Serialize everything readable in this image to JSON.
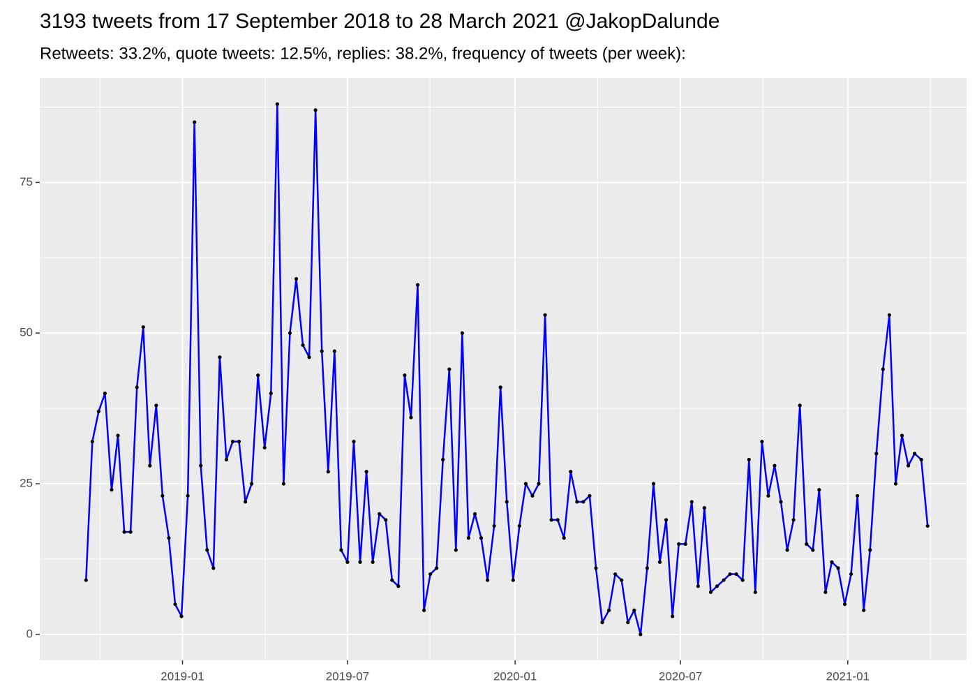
{
  "chart_data": {
    "type": "line",
    "title": "3193 tweets from 17 September 2018 to 28 March 2021 @JakopDalunde",
    "subtitle": "Retweets: 33.2%, quote tweets: 12.5%, replies: 38.2%, frequency of tweets (per week):",
    "x": [
      2018.71,
      2018.729,
      2018.748,
      2018.767,
      2018.787,
      2018.806,
      2018.825,
      2018.844,
      2018.863,
      2018.882,
      2018.902,
      2018.921,
      2018.94,
      2018.959,
      2018.978,
      2018.997,
      2019.016,
      2019.036,
      2019.055,
      2019.074,
      2019.093,
      2019.112,
      2019.132,
      2019.151,
      2019.17,
      2019.189,
      2019.208,
      2019.227,
      2019.247,
      2019.266,
      2019.285,
      2019.304,
      2019.323,
      2019.342,
      2019.362,
      2019.381,
      2019.4,
      2019.419,
      2019.438,
      2019.457,
      2019.477,
      2019.496,
      2019.515,
      2019.534,
      2019.553,
      2019.572,
      2019.592,
      2019.611,
      2019.63,
      2019.649,
      2019.668,
      2019.687,
      2019.707,
      2019.726,
      2019.745,
      2019.764,
      2019.783,
      2019.802,
      2019.822,
      2019.841,
      2019.86,
      2019.879,
      2019.898,
      2019.917,
      2019.937,
      2019.956,
      2019.975,
      2019.994,
      2020.013,
      2020.032,
      2020.052,
      2020.071,
      2020.09,
      2020.109,
      2020.128,
      2020.147,
      2020.167,
      2020.186,
      2020.205,
      2020.224,
      2020.243,
      2020.262,
      2020.282,
      2020.301,
      2020.32,
      2020.339,
      2020.358,
      2020.377,
      2020.397,
      2020.416,
      2020.435,
      2020.454,
      2020.473,
      2020.492,
      2020.512,
      2020.531,
      2020.55,
      2020.569,
      2020.588,
      2020.607,
      2020.627,
      2020.646,
      2020.665,
      2020.684,
      2020.703,
      2020.722,
      2020.742,
      2020.761,
      2020.78,
      2020.799,
      2020.818,
      2020.837,
      2020.856,
      2020.876,
      2020.895,
      2020.914,
      2020.933,
      2020.952,
      2020.971,
      2020.991,
      2021.01,
      2021.029,
      2021.048,
      2021.067,
      2021.086,
      2021.106,
      2021.125,
      2021.144,
      2021.163,
      2021.182,
      2021.201,
      2021.221,
      2021.24
    ],
    "series": [
      {
        "color": "#0000ff",
        "marker_color": "#000000",
        "values": [
          9,
          32,
          37,
          40,
          24,
          33,
          17,
          17,
          41,
          51,
          28,
          38,
          23,
          16,
          5,
          3,
          23,
          85,
          28,
          14,
          11,
          46,
          29,
          32,
          32,
          22,
          25,
          43,
          31,
          40,
          88,
          25,
          50,
          59,
          48,
          46,
          87,
          47,
          27,
          47,
          14,
          12,
          32,
          12,
          27,
          12,
          20,
          19,
          9,
          8,
          43,
          36,
          58,
          4,
          10,
          11,
          29,
          44,
          14,
          50,
          16,
          20,
          16,
          9,
          18,
          41,
          22,
          9,
          18,
          25,
          23,
          25,
          53,
          19,
          19,
          16,
          27,
          22,
          22,
          23,
          11,
          2,
          4,
          10,
          9,
          2,
          4,
          0,
          11,
          25,
          12,
          19,
          3,
          15,
          15,
          22,
          8,
          21,
          7,
          8,
          9,
          10,
          10,
          9,
          29,
          7,
          32,
          23,
          28,
          22,
          14,
          19,
          38,
          15,
          14,
          24,
          7,
          12,
          11,
          5,
          10,
          23,
          4,
          14,
          30,
          44,
          53,
          25,
          33,
          28,
          30,
          29,
          18
        ]
      }
    ],
    "xlim": [
      2018.571,
      2021.357
    ],
    "xticks": [
      {
        "value": 2019,
        "label": "2019-01"
      },
      {
        "value": 2019.496,
        "label": "2019-07"
      },
      {
        "value": 2020,
        "label": "2020-01"
      },
      {
        "value": 2020.497,
        "label": "2020-07"
      },
      {
        "value": 2021,
        "label": "2021-01"
      }
    ],
    "ylim": [
      -4.3,
      92.3
    ],
    "yticks": [
      0,
      25,
      50,
      75
    ],
    "grid": true
  }
}
